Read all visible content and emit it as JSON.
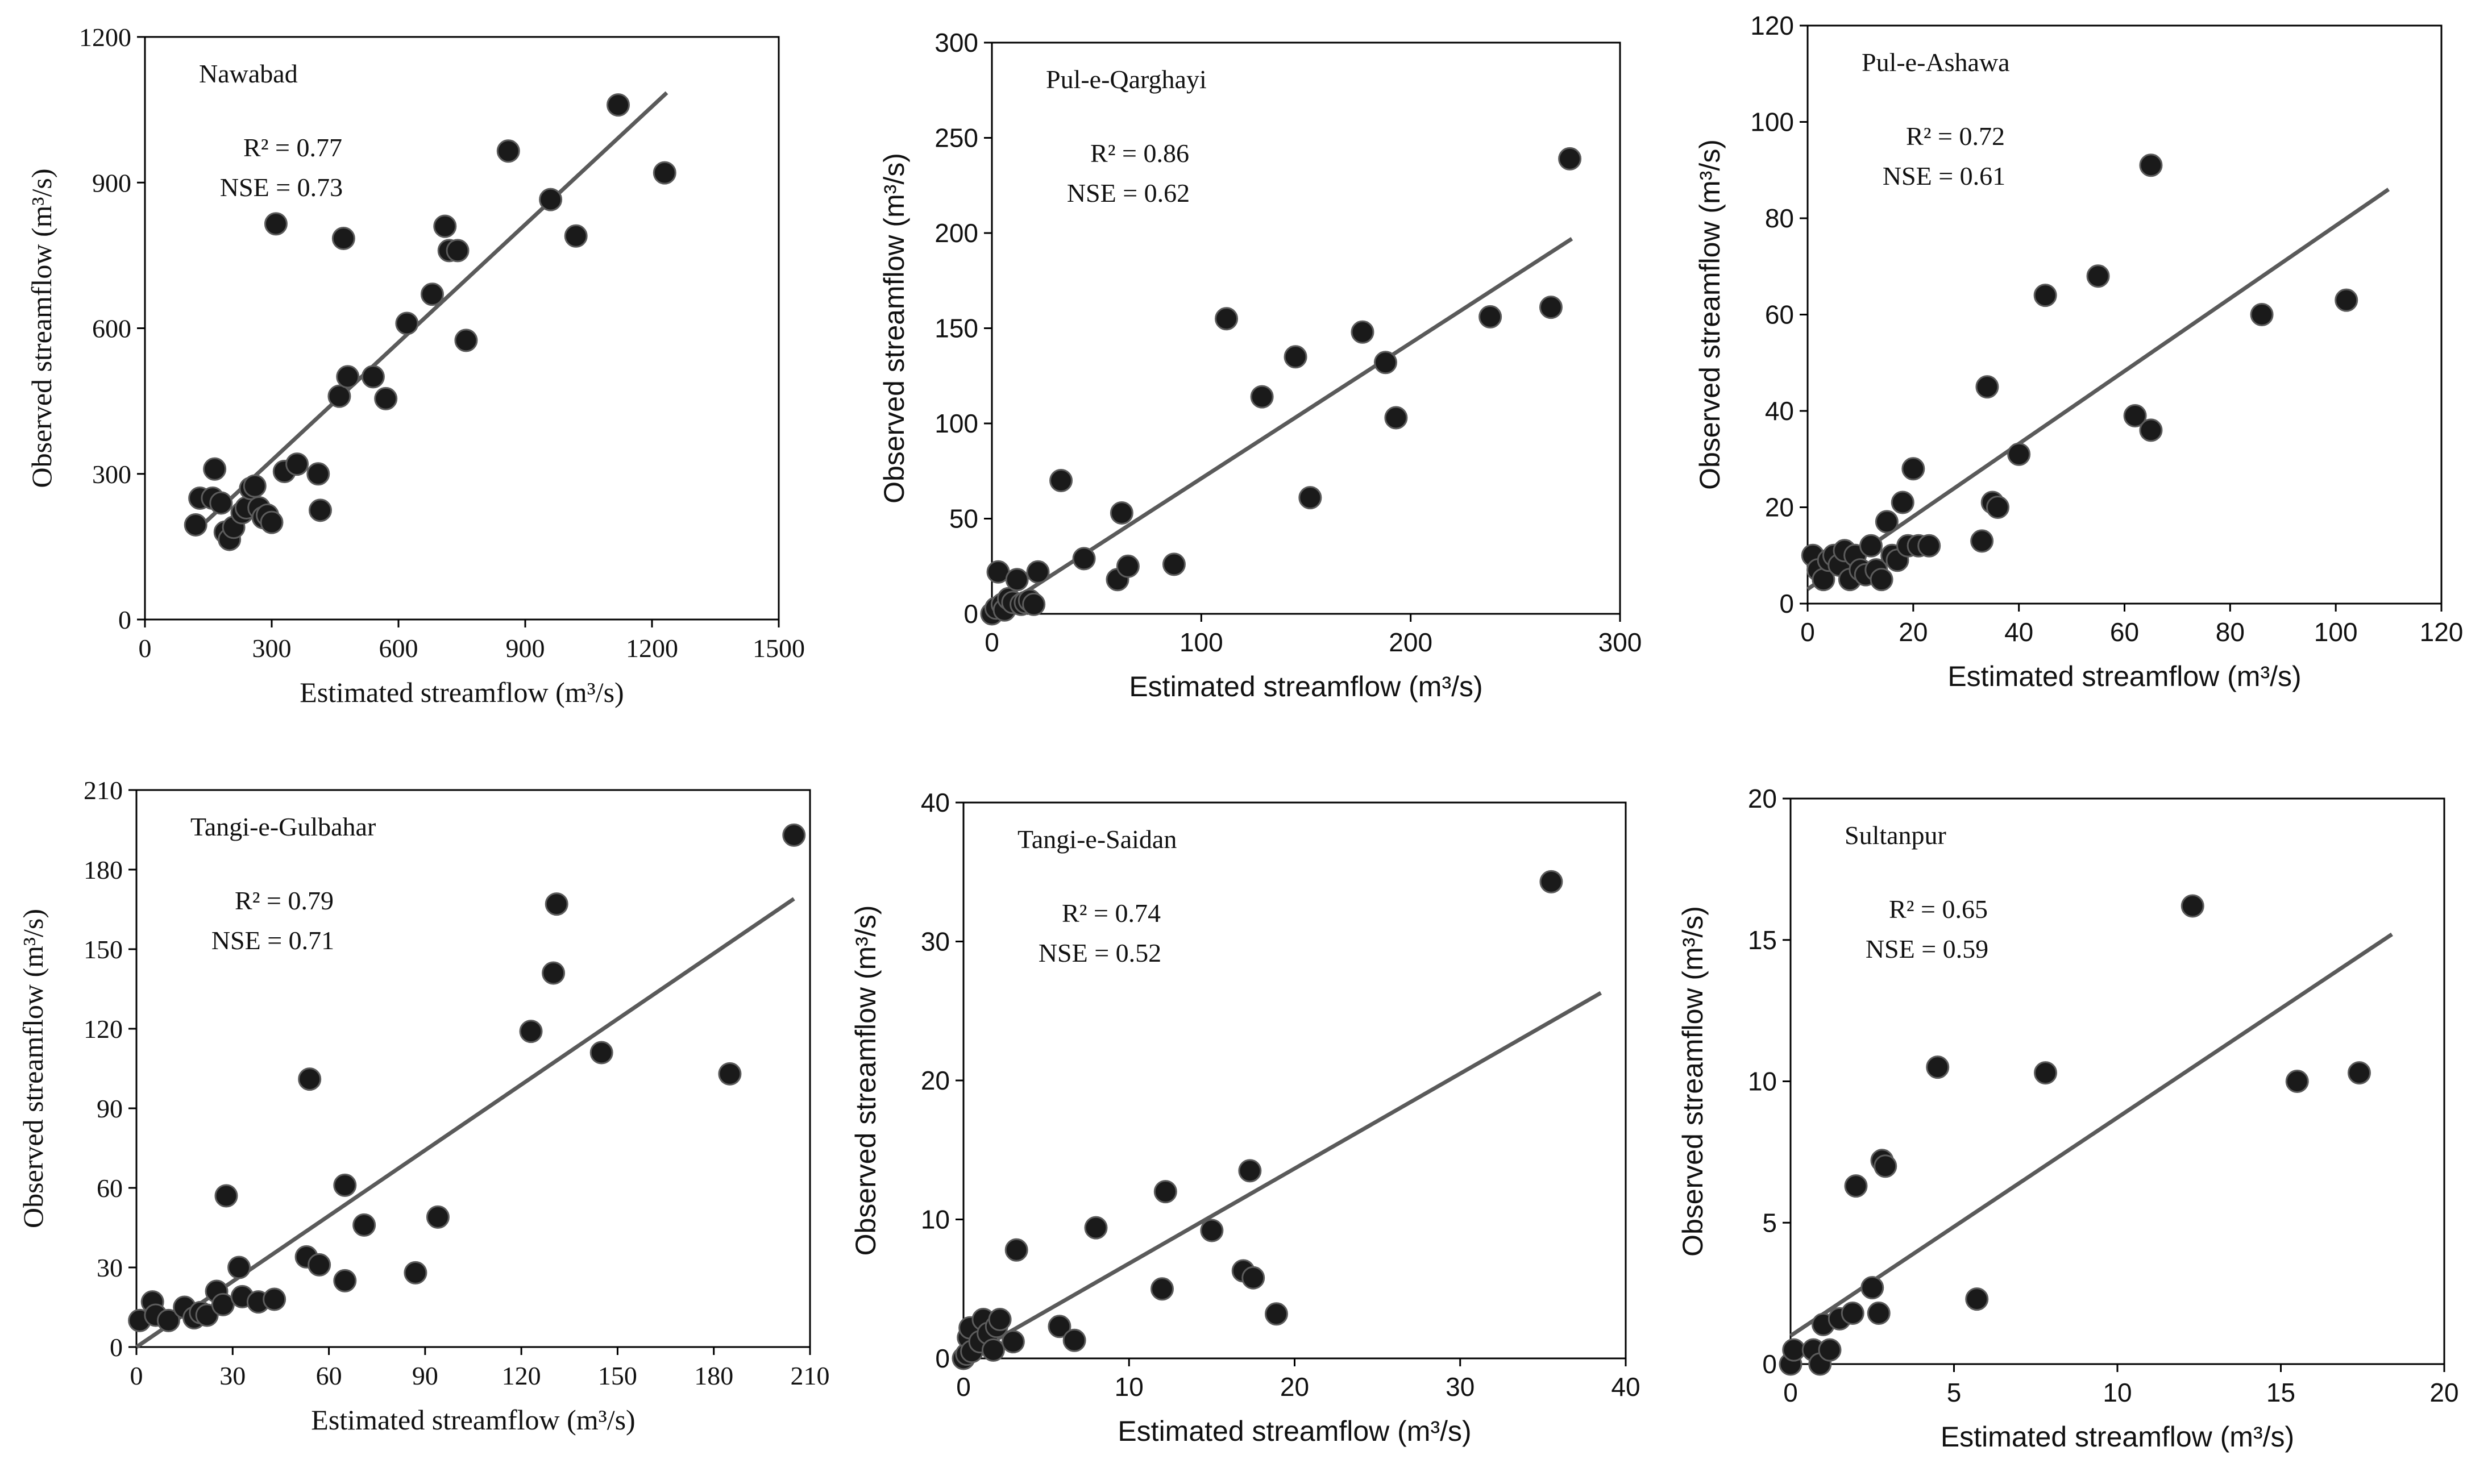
{
  "chart_data": [
    {
      "type": "scatter",
      "title": "Nawabad",
      "stats": [
        "R² = 0.77",
        "NSE = 0.73"
      ],
      "xlabel": "Estimated streamflow (m³/s)",
      "ylabel": "Observed streamflow (m³/s)",
      "xlim": [
        0,
        1500
      ],
      "ylim": [
        0,
        1200
      ],
      "xticks": [
        0,
        300,
        600,
        900,
        1200,
        1500
      ],
      "yticks": [
        0,
        300,
        600,
        900,
        1200
      ],
      "points": [
        [
          120,
          195
        ],
        [
          130,
          250
        ],
        [
          160,
          250
        ],
        [
          165,
          310
        ],
        [
          180,
          240
        ],
        [
          190,
          180
        ],
        [
          200,
          165
        ],
        [
          210,
          190
        ],
        [
          230,
          220
        ],
        [
          240,
          230
        ],
        [
          250,
          270
        ],
        [
          260,
          275
        ],
        [
          270,
          230
        ],
        [
          280,
          210
        ],
        [
          290,
          215
        ],
        [
          300,
          200
        ],
        [
          310,
          815
        ],
        [
          330,
          305
        ],
        [
          360,
          320
        ],
        [
          410,
          300
        ],
        [
          415,
          225
        ],
        [
          460,
          460
        ],
        [
          470,
          785
        ],
        [
          480,
          500
        ],
        [
          540,
          500
        ],
        [
          570,
          455
        ],
        [
          620,
          610
        ],
        [
          680,
          670
        ],
        [
          710,
          810
        ],
        [
          720,
          760
        ],
        [
          740,
          760
        ],
        [
          760,
          575
        ],
        [
          860,
          965
        ],
        [
          960,
          865
        ],
        [
          1020,
          790
        ],
        [
          1120,
          1060
        ],
        [
          1230,
          920
        ]
      ],
      "trendline": [
        [
          130,
          190
        ],
        [
          1235,
          1085
        ]
      ]
    },
    {
      "type": "scatter",
      "title": "Pul-e-Qarghayi",
      "stats": [
        "R² = 0.86",
        "NSE = 0.62"
      ],
      "xlabel": "Estimated streamflow (m³/s)",
      "ylabel": "Observed streamflow (m³/s)",
      "xlim": [
        0,
        300
      ],
      "ylim": [
        0,
        300
      ],
      "xticks": [
        0,
        100,
        200,
        300
      ],
      "yticks": [
        0,
        50,
        100,
        150,
        200,
        250,
        300
      ],
      "points": [
        [
          0,
          0
        ],
        [
          2,
          3
        ],
        [
          3,
          22
        ],
        [
          5,
          5
        ],
        [
          6,
          2
        ],
        [
          8,
          8
        ],
        [
          10,
          6
        ],
        [
          12,
          18
        ],
        [
          14,
          5
        ],
        [
          16,
          6
        ],
        [
          18,
          7
        ],
        [
          20,
          5
        ],
        [
          22,
          22
        ],
        [
          33,
          70
        ],
        [
          44,
          29
        ],
        [
          60,
          18
        ],
        [
          62,
          53
        ],
        [
          65,
          25
        ],
        [
          87,
          26
        ],
        [
          112,
          155
        ],
        [
          129,
          114
        ],
        [
          145,
          135
        ],
        [
          152,
          61
        ],
        [
          177,
          148
        ],
        [
          188,
          132
        ],
        [
          193,
          103
        ],
        [
          238,
          156
        ],
        [
          267,
          161
        ],
        [
          276,
          239
        ]
      ],
      "trendline": [
        [
          0,
          0
        ],
        [
          277,
          197
        ]
      ]
    },
    {
      "type": "scatter",
      "title": "Pul-e-Ashawa",
      "stats": [
        "R² = 0.72",
        "NSE = 0.61"
      ],
      "xlabel": "Estimated streamflow (m³/s)",
      "ylabel": "Observed streamflow (m³/s)",
      "xlim": [
        0,
        120
      ],
      "ylim": [
        0,
        120
      ],
      "xticks": [
        0,
        20,
        40,
        60,
        80,
        100,
        120
      ],
      "yticks": [
        0,
        20,
        40,
        60,
        80,
        100,
        120
      ],
      "points": [
        [
          1,
          10
        ],
        [
          2,
          7
        ],
        [
          3,
          5
        ],
        [
          4,
          9
        ],
        [
          5,
          10
        ],
        [
          6,
          8
        ],
        [
          7,
          11
        ],
        [
          8,
          5
        ],
        [
          9,
          10
        ],
        [
          10,
          7
        ],
        [
          11,
          6
        ],
        [
          12,
          12
        ],
        [
          13,
          7
        ],
        [
          14,
          5
        ],
        [
          15,
          17
        ],
        [
          16,
          10
        ],
        [
          17,
          9
        ],
        [
          18,
          21
        ],
        [
          19,
          12
        ],
        [
          20,
          28
        ],
        [
          21,
          12
        ],
        [
          23,
          12
        ],
        [
          33,
          13
        ],
        [
          34,
          45
        ],
        [
          35,
          21
        ],
        [
          36,
          20
        ],
        [
          40,
          31
        ],
        [
          45,
          64
        ],
        [
          55,
          68
        ],
        [
          62,
          39
        ],
        [
          65,
          36
        ],
        [
          65,
          91
        ],
        [
          86,
          60
        ],
        [
          102,
          63
        ]
      ],
      "trendline": [
        [
          0,
          3
        ],
        [
          110,
          86
        ]
      ]
    },
    {
      "type": "scatter",
      "title": "Tangi-e-Gulbahar",
      "stats": [
        "R² = 0.79",
        "NSE = 0.71"
      ],
      "xlabel": "Estimated streamflow (m³/s)",
      "ylabel": "Observed streamflow (m³/s)",
      "xlim": [
        0,
        210
      ],
      "ylim": [
        0,
        210
      ],
      "xticks": [
        0,
        30,
        60,
        90,
        120,
        150,
        180,
        210
      ],
      "yticks": [
        0,
        30,
        60,
        90,
        120,
        150,
        180,
        210
      ],
      "points": [
        [
          1,
          10
        ],
        [
          5,
          17
        ],
        [
          6,
          12
        ],
        [
          10,
          10
        ],
        [
          15,
          15
        ],
        [
          18,
          11
        ],
        [
          20,
          13
        ],
        [
          22,
          12
        ],
        [
          25,
          21
        ],
        [
          27,
          16
        ],
        [
          28,
          57
        ],
        [
          32,
          30
        ],
        [
          33,
          19
        ],
        [
          38,
          17
        ],
        [
          43,
          18
        ],
        [
          53,
          34
        ],
        [
          54,
          101
        ],
        [
          57,
          31
        ],
        [
          65,
          61
        ],
        [
          65,
          25
        ],
        [
          71,
          46
        ],
        [
          87,
          28
        ],
        [
          94,
          49
        ],
        [
          123,
          119
        ],
        [
          130,
          141
        ],
        [
          131,
          167
        ],
        [
          145,
          111
        ],
        [
          185,
          103
        ],
        [
          205,
          193
        ]
      ],
      "trendline": [
        [
          0,
          0
        ],
        [
          205,
          169
        ]
      ]
    },
    {
      "type": "scatter",
      "title": "Tangi-e-Saidan",
      "stats": [
        "R² = 0.74",
        "NSE = 0.52"
      ],
      "xlabel": "Estimated streamflow (m³/s)",
      "ylabel": "Observed streamflow (m³/s)",
      "xlim": [
        0,
        40
      ],
      "ylim": [
        0,
        40
      ],
      "xticks": [
        0,
        10,
        20,
        30,
        40
      ],
      "yticks": [
        0,
        10,
        20,
        30,
        40
      ],
      "points": [
        [
          0,
          0
        ],
        [
          0.2,
          0.3
        ],
        [
          0.3,
          1.5
        ],
        [
          0.4,
          2.2
        ],
        [
          0.5,
          0.5
        ],
        [
          1,
          1.2
        ],
        [
          1.2,
          2.8
        ],
        [
          1.5,
          1.8
        ],
        [
          1.8,
          0.6
        ],
        [
          2,
          2.3
        ],
        [
          2.2,
          2.8
        ],
        [
          3,
          1.2
        ],
        [
          3.2,
          7.8
        ],
        [
          5.8,
          2.3
        ],
        [
          6.7,
          1.3
        ],
        [
          8,
          9.4
        ],
        [
          12,
          5
        ],
        [
          12.2,
          12
        ],
        [
          15,
          9.2
        ],
        [
          16.9,
          6.3
        ],
        [
          17.3,
          13.5
        ],
        [
          17.5,
          5.8
        ],
        [
          18.9,
          3.2
        ],
        [
          35.5,
          34.3
        ]
      ],
      "trendline": [
        [
          0,
          0
        ],
        [
          38.5,
          26.3
        ]
      ]
    },
    {
      "type": "scatter",
      "title": "Sultanpur",
      "stats": [
        "R² = 0.65",
        "NSE = 0.59"
      ],
      "xlabel": "Estimated streamflow (m³/s)",
      "ylabel": "Observed streamflow (m³/s)",
      "xlim": [
        0,
        20
      ],
      "ylim": [
        0,
        20
      ],
      "xticks": [
        0,
        5,
        10,
        15,
        20
      ],
      "yticks": [
        0,
        5,
        10,
        15,
        20
      ],
      "points": [
        [
          0,
          0
        ],
        [
          0.1,
          0.5
        ],
        [
          0.7,
          0.5
        ],
        [
          0.9,
          0
        ],
        [
          1,
          1.4
        ],
        [
          1.2,
          0.5
        ],
        [
          1.5,
          1.6
        ],
        [
          1.9,
          1.8
        ],
        [
          2,
          6.3
        ],
        [
          2.5,
          2.7
        ],
        [
          2.7,
          1.8
        ],
        [
          2.8,
          7.2
        ],
        [
          2.9,
          7
        ],
        [
          4.5,
          10.5
        ],
        [
          5.7,
          2.3
        ],
        [
          7.8,
          10.3
        ],
        [
          12.3,
          16.2
        ],
        [
          15.5,
          10
        ],
        [
          17.4,
          10.3
        ]
      ],
      "trendline": [
        [
          0,
          1
        ],
        [
          18.4,
          15.2
        ]
      ]
    }
  ]
}
